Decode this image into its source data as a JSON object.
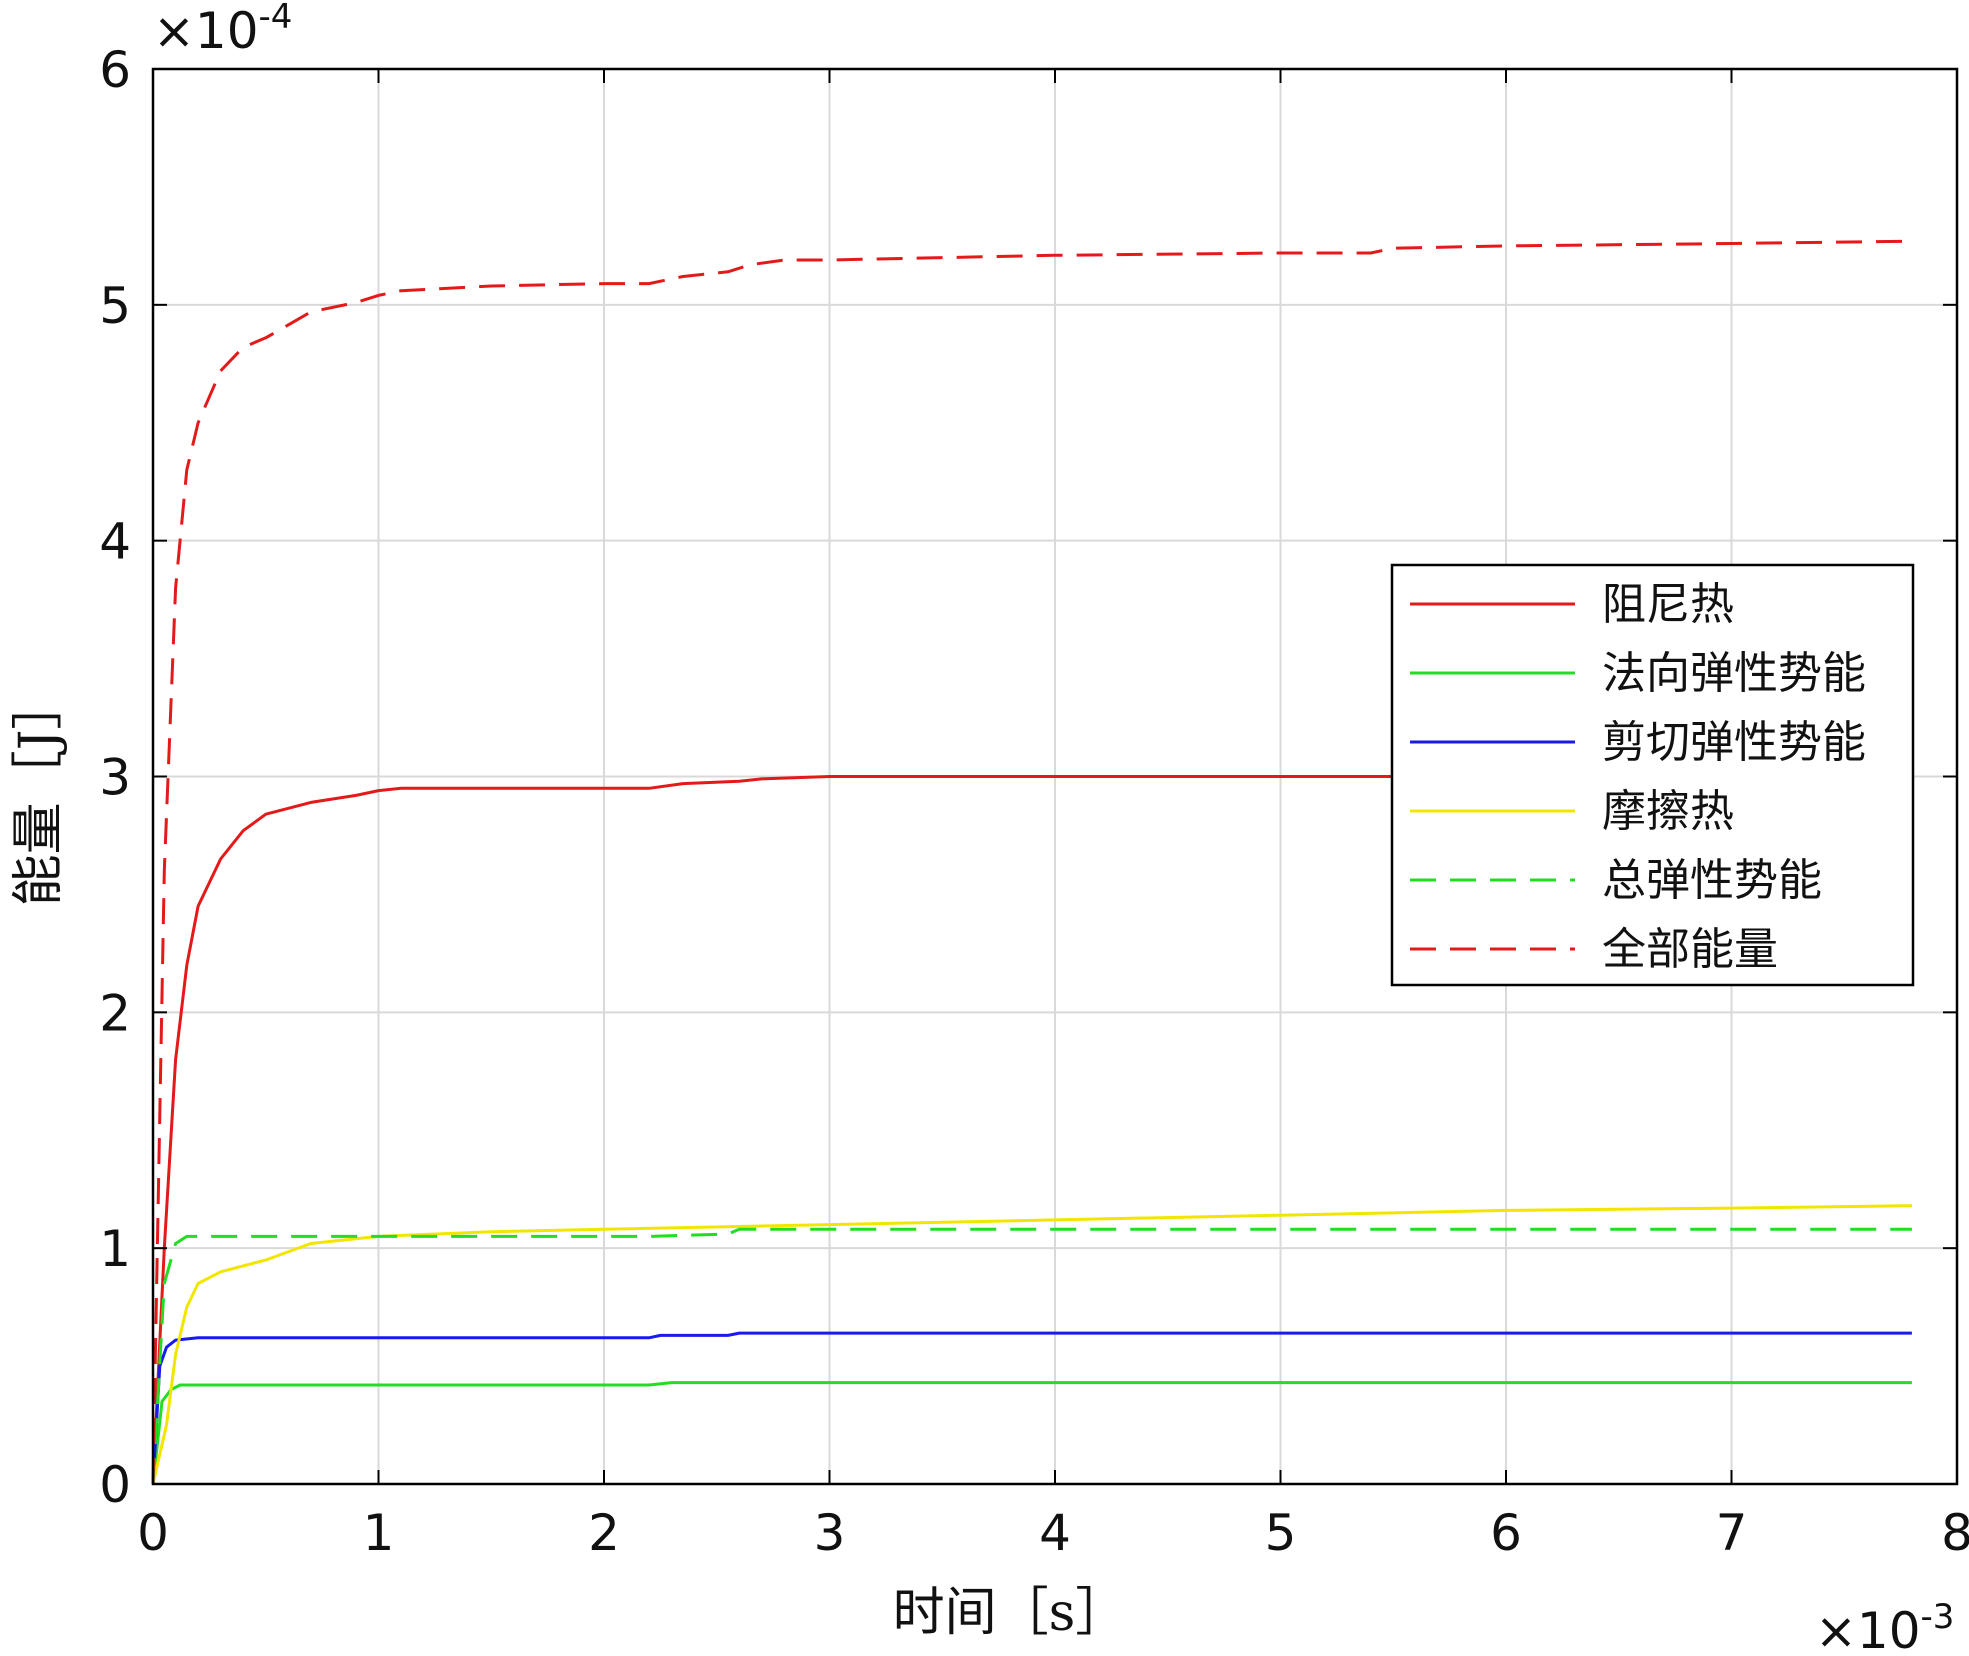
{
  "chart_data": {
    "type": "line",
    "xlabel": "时间［s］",
    "ylabel": "能量［J］",
    "x_multiplier": "×10",
    "x_multiplier_exp": "-3",
    "y_multiplier": "×10",
    "y_multiplier_exp": "-4",
    "xlim": [
      0,
      8
    ],
    "ylim": [
      0,
      6
    ],
    "x_ticks": [
      "0",
      "1",
      "2",
      "3",
      "4",
      "5",
      "6",
      "7",
      "8"
    ],
    "y_ticks": [
      "0",
      "1",
      "2",
      "3",
      "4",
      "5",
      "6"
    ],
    "grid": true,
    "legend_position": "right",
    "series": [
      {
        "name": "阻尼热",
        "color": "#e41a1a",
        "dash": "solid",
        "points": [
          [
            0,
            0
          ],
          [
            0.05,
            1.0
          ],
          [
            0.1,
            1.8
          ],
          [
            0.15,
            2.2
          ],
          [
            0.2,
            2.45
          ],
          [
            0.3,
            2.65
          ],
          [
            0.4,
            2.77
          ],
          [
            0.5,
            2.84
          ],
          [
            0.7,
            2.89
          ],
          [
            0.9,
            2.92
          ],
          [
            1.0,
            2.94
          ],
          [
            1.1,
            2.95
          ],
          [
            2.0,
            2.95
          ],
          [
            2.2,
            2.95
          ],
          [
            2.35,
            2.97
          ],
          [
            2.6,
            2.98
          ],
          [
            2.7,
            2.99
          ],
          [
            3.0,
            3.0
          ],
          [
            7.8,
            3.0
          ]
        ]
      },
      {
        "name": "法向弹性势能",
        "color": "#22dd22",
        "dash": "solid",
        "points": [
          [
            0,
            0
          ],
          [
            0.04,
            0.35
          ],
          [
            0.08,
            0.4
          ],
          [
            0.12,
            0.42
          ],
          [
            0.2,
            0.42
          ],
          [
            2.2,
            0.42
          ],
          [
            2.3,
            0.43
          ],
          [
            2.6,
            0.43
          ],
          [
            7.8,
            0.43
          ]
        ]
      },
      {
        "name": "剪切弹性势能",
        "color": "#1a1aee",
        "dash": "solid",
        "points": [
          [
            0,
            0
          ],
          [
            0.03,
            0.5
          ],
          [
            0.06,
            0.58
          ],
          [
            0.1,
            0.61
          ],
          [
            0.2,
            0.62
          ],
          [
            2.2,
            0.62
          ],
          [
            2.25,
            0.63
          ],
          [
            2.55,
            0.63
          ],
          [
            2.6,
            0.64
          ],
          [
            7.8,
            0.64
          ]
        ]
      },
      {
        "name": "摩擦热",
        "color": "#f2e600",
        "dash": "solid",
        "points": [
          [
            0,
            0
          ],
          [
            0.06,
            0.25
          ],
          [
            0.1,
            0.55
          ],
          [
            0.15,
            0.75
          ],
          [
            0.2,
            0.85
          ],
          [
            0.3,
            0.9
          ],
          [
            0.5,
            0.95
          ],
          [
            0.7,
            1.02
          ],
          [
            1.0,
            1.05
          ],
          [
            1.5,
            1.07
          ],
          [
            2.0,
            1.08
          ],
          [
            3.0,
            1.1
          ],
          [
            4.0,
            1.12
          ],
          [
            5.0,
            1.14
          ],
          [
            6.0,
            1.16
          ],
          [
            7.0,
            1.17
          ],
          [
            7.8,
            1.18
          ]
        ]
      },
      {
        "name": "总弹性势能",
        "color": "#22dd22",
        "dash": "dashed",
        "points": [
          [
            0,
            0
          ],
          [
            0.05,
            0.85
          ],
          [
            0.1,
            1.02
          ],
          [
            0.15,
            1.05
          ],
          [
            2.2,
            1.05
          ],
          [
            2.55,
            1.06
          ],
          [
            2.6,
            1.08
          ],
          [
            7.8,
            1.08
          ]
        ]
      },
      {
        "name": "全部能量",
        "color": "#e41a1a",
        "dash": "dashed",
        "points": [
          [
            0,
            0
          ],
          [
            0.05,
            2.6
          ],
          [
            0.1,
            3.8
          ],
          [
            0.15,
            4.3
          ],
          [
            0.2,
            4.5
          ],
          [
            0.3,
            4.72
          ],
          [
            0.4,
            4.82
          ],
          [
            0.5,
            4.86
          ],
          [
            0.7,
            4.97
          ],
          [
            0.9,
            5.01
          ],
          [
            1.0,
            5.04
          ],
          [
            1.1,
            5.06
          ],
          [
            1.5,
            5.08
          ],
          [
            2.0,
            5.09
          ],
          [
            2.2,
            5.09
          ],
          [
            2.35,
            5.12
          ],
          [
            2.55,
            5.14
          ],
          [
            2.65,
            5.17
          ],
          [
            2.8,
            5.19
          ],
          [
            3.0,
            5.19
          ],
          [
            4.0,
            5.21
          ],
          [
            5.0,
            5.22
          ],
          [
            5.4,
            5.22
          ],
          [
            5.5,
            5.24
          ],
          [
            6.0,
            5.25
          ],
          [
            7.0,
            5.26
          ],
          [
            7.8,
            5.27
          ]
        ]
      }
    ]
  }
}
